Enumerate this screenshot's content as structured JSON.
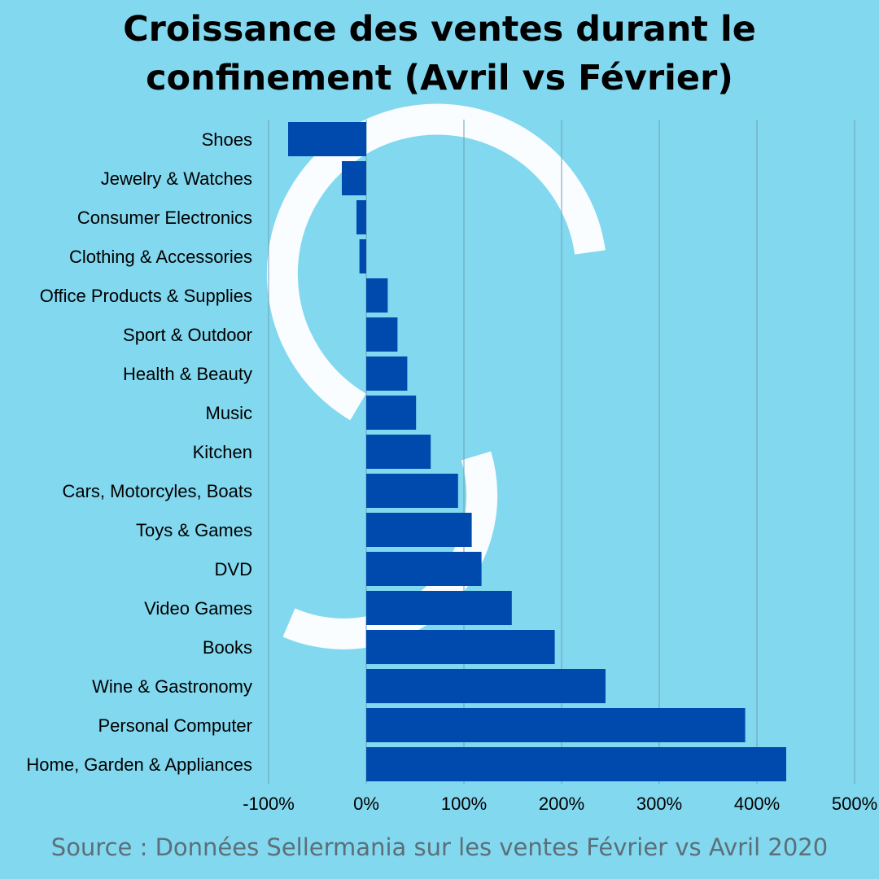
{
  "title": {
    "line1": "Croissance des ventes durant le",
    "line2": "confinement (Avril vs Février)"
  },
  "source": "Source : Données Sellermania sur les ventes Février vs Avril  2020",
  "colors": {
    "background": "#82d8ef",
    "bar": "#004aad",
    "watermark": "#ffffff",
    "gridline": "#6d9fb5"
  },
  "chart_data": {
    "type": "bar",
    "orientation": "horizontal",
    "categories": [
      "Shoes",
      "Jewelry & Watches",
      "Consumer Electronics",
      "Clothing & Accessories",
      "Office Products & Supplies",
      "Sport & Outdoor",
      "Health & Beauty",
      "Music",
      "Kitchen",
      "Cars, Motorcyles, Boats",
      "Toys & Games",
      "DVD",
      "Video Games",
      "Books",
      "Wine & Gastronomy",
      "Personal Computer",
      "Home, Garden & Appliances"
    ],
    "values": [
      -80,
      -25,
      -10,
      -7,
      22,
      32,
      42,
      51,
      66,
      94,
      108,
      118,
      149,
      193,
      245,
      388,
      430
    ],
    "xlim": [
      -100,
      500
    ],
    "xticks": [
      -100,
      0,
      100,
      200,
      300,
      400,
      500
    ],
    "xtick_labels": [
      "-100%",
      "0%",
      "100%",
      "200%",
      "300%",
      "400%",
      "500%"
    ],
    "grid": "vertical",
    "xlabel": "",
    "ylabel": ""
  }
}
